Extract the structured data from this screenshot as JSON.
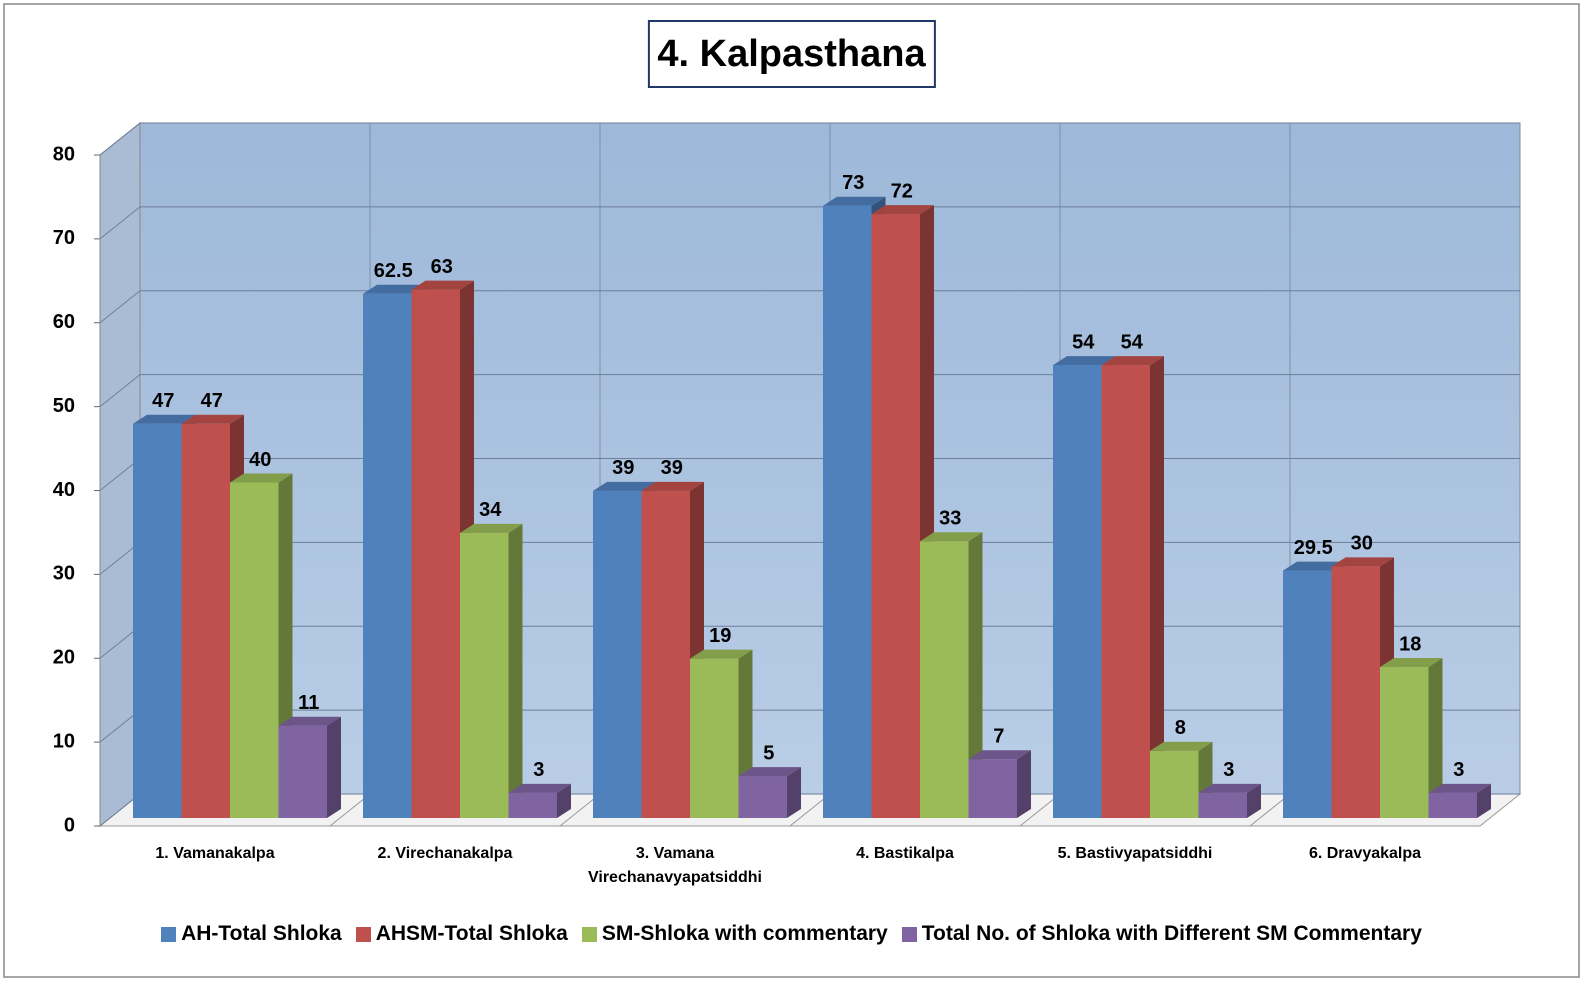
{
  "chart_data": {
    "type": "bar3d",
    "title": "4. Kalpasthana",
    "categories": [
      "1. Vamanakalpa",
      "2. Virechanakalpa",
      "3. Vamana Virechanavyapatsiddhi",
      "4. Bastikalpa",
      "5. Bastivyapatsiddhi",
      "6. Dravyakalpa"
    ],
    "series": [
      {
        "name": "AH-Total Shloka",
        "color": "#4f81bd",
        "values": [
          47,
          62.5,
          39,
          73,
          54,
          29.5
        ]
      },
      {
        "name": "AHSM-Total Shloka",
        "color": "#c0504d",
        "values": [
          47,
          63,
          39,
          72,
          54,
          30
        ]
      },
      {
        "name": "SM-Shloka with commentary",
        "color": "#9bbb59",
        "values": [
          40,
          34,
          19,
          33,
          8,
          18
        ]
      },
      {
        "name": "Total No. of Shloka with Different SM Commentary",
        "color": "#8064a2",
        "values": [
          11,
          3,
          5,
          7,
          3,
          3
        ]
      }
    ],
    "ylim": [
      0,
      80
    ],
    "yticks": [
      0,
      10,
      20,
      30,
      40,
      50,
      60,
      70,
      80
    ],
    "grid": true,
    "legend": "bottom"
  }
}
